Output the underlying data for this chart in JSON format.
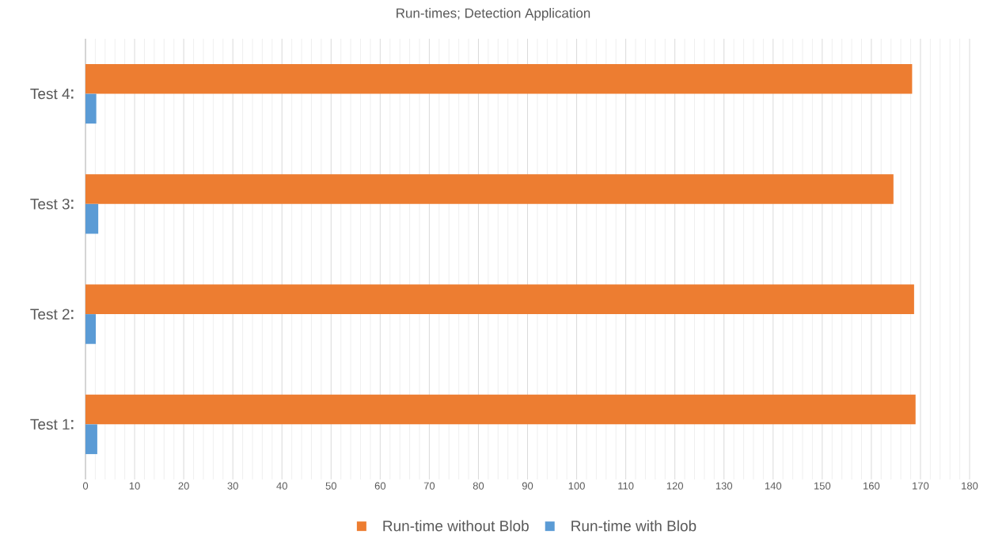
{
  "chart_data": {
    "type": "bar",
    "orientation": "horizontal",
    "title": "Run-times; Detection Application",
    "categories": [
      "Test 4",
      "Test 3",
      "Test 2",
      "Test 1"
    ],
    "series": [
      {
        "name": "Run-time without Blob",
        "color": "#ed7d31",
        "values": [
          168.3,
          164.5,
          168.7,
          169.0
        ]
      },
      {
        "name": "Run-time with Blob",
        "color": "#5b9bd5",
        "values": [
          2.2,
          2.6,
          2.1,
          2.4
        ]
      }
    ],
    "xlim": [
      0,
      180
    ],
    "xticks": [
      0,
      10,
      20,
      30,
      40,
      50,
      60,
      70,
      80,
      90,
      100,
      110,
      120,
      130,
      140,
      150,
      160,
      170,
      180
    ],
    "grid": "x",
    "legend": "bottom"
  }
}
